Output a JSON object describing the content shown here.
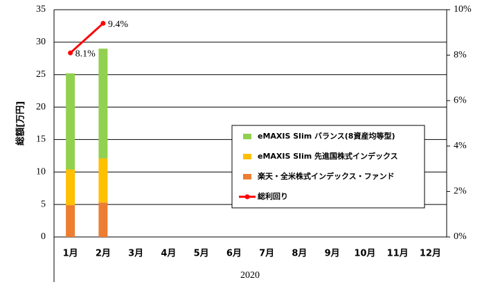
{
  "chart_data": {
    "type": "bar-line",
    "y_label": "総額[万円]",
    "x_group_label": "2020",
    "categories": [
      "1月",
      "2月",
      "3月",
      "4月",
      "5月",
      "6月",
      "7月",
      "8月",
      "9月",
      "10月",
      "11月",
      "12月"
    ],
    "series": [
      {
        "name": "楽天・全米株式インデックス・ファンド",
        "color": "#ed7d31",
        "values": [
          4.9,
          5.3,
          null,
          null,
          null,
          null,
          null,
          null,
          null,
          null,
          null,
          null
        ]
      },
      {
        "name": "eMAXIS Slim 先進国株式インデックス",
        "color": "#ffc000",
        "values": [
          5.5,
          6.8,
          null,
          null,
          null,
          null,
          null,
          null,
          null,
          null,
          null,
          null
        ]
      },
      {
        "name": "eMAXIS Slim バランス(8資産均等型)",
        "color": "#92d050",
        "values": [
          14.8,
          16.9,
          null,
          null,
          null,
          null,
          null,
          null,
          null,
          null,
          null,
          null
        ]
      },
      {
        "name": "総利回り",
        "color": "#ff0000",
        "axis": "y2",
        "kind": "line",
        "values": [
          8.1,
          9.4,
          null,
          null,
          null,
          null,
          null,
          null,
          null,
          null,
          null,
          null
        ],
        "value_labels": [
          "8.1%",
          "9.4%",
          null,
          null,
          null,
          null,
          null,
          null,
          null,
          null,
          null,
          null
        ]
      }
    ],
    "ylim": [
      0,
      35
    ],
    "yticks": [
      0,
      5,
      10,
      15,
      20,
      25,
      30,
      35
    ],
    "y2lim": [
      0,
      10
    ],
    "y2ticks": [
      {
        "value": 0,
        "label": "0%"
      },
      {
        "value": 2,
        "label": "2%"
      },
      {
        "value": 4,
        "label": "4%"
      },
      {
        "value": 6,
        "label": "6%"
      },
      {
        "value": 8,
        "label": "8%"
      },
      {
        "value": 10,
        "label": "10%"
      }
    ],
    "grid": true
  }
}
